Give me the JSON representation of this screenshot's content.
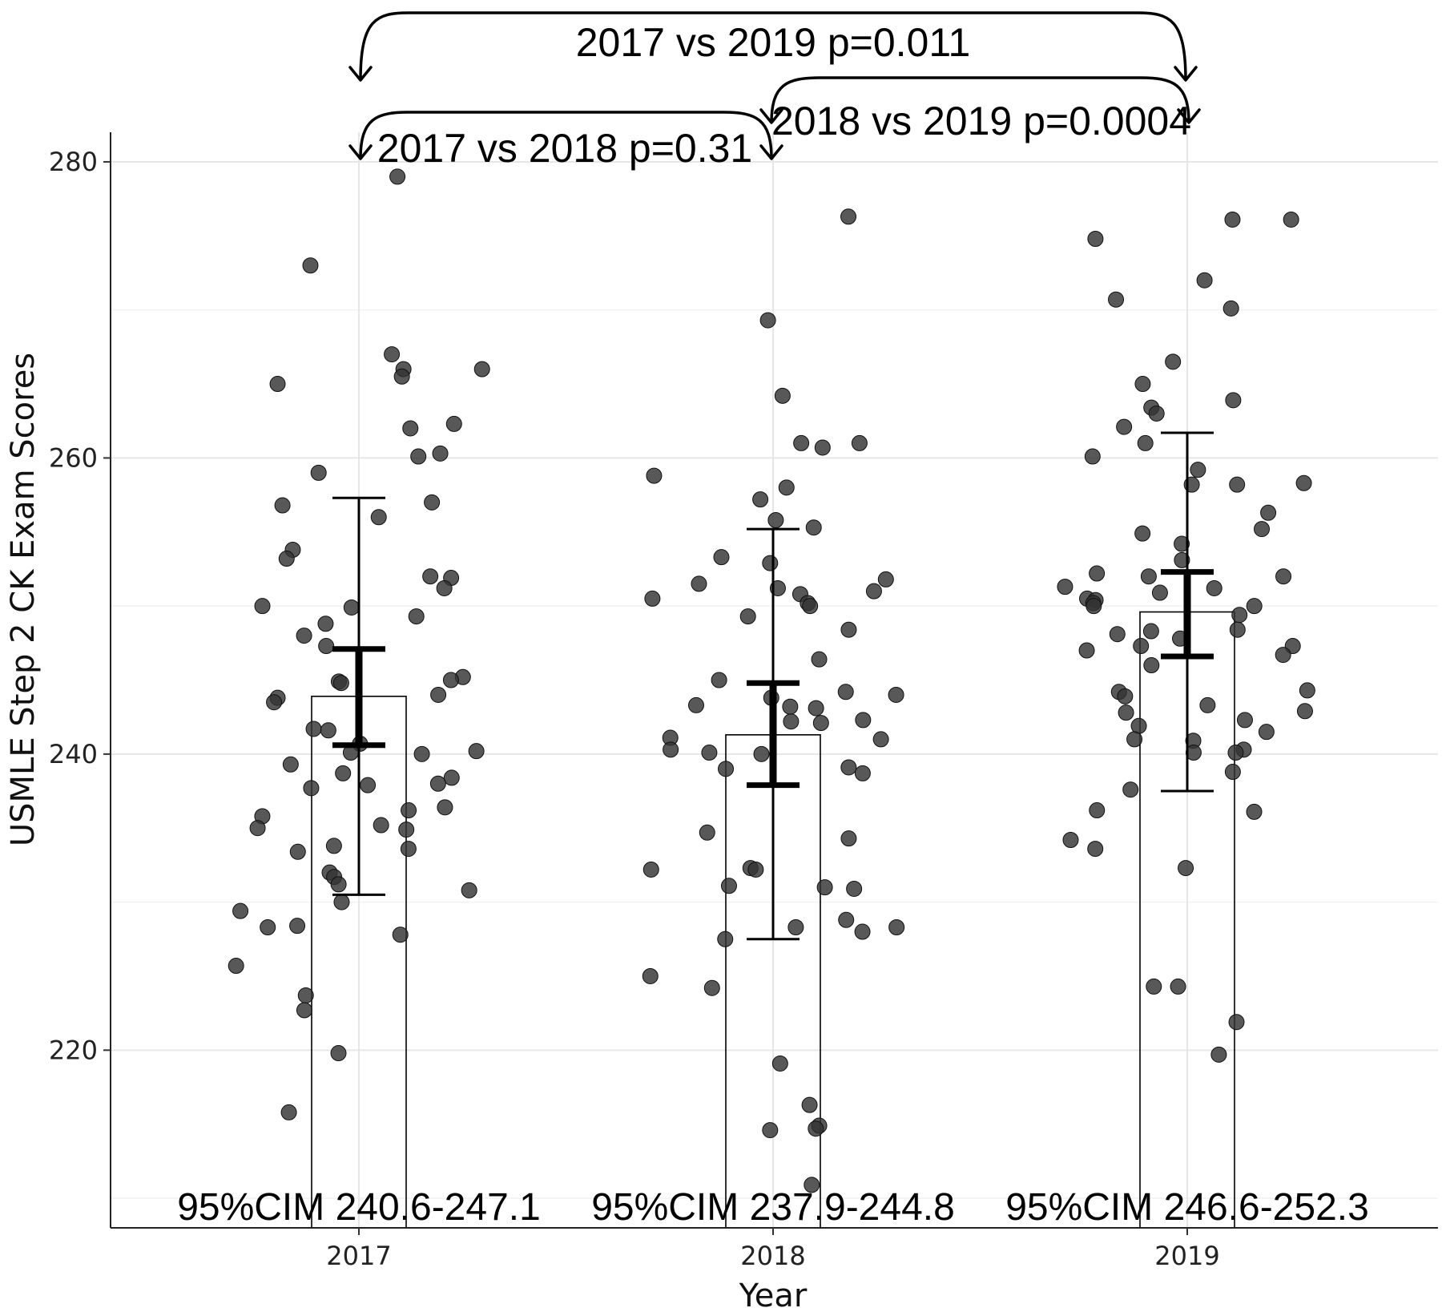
{
  "chart_data": {
    "type": "scatter",
    "title": "",
    "xlabel": "Year",
    "ylabel": "USMLE Step 2 CK Exam Scores",
    "categories": [
      "2017",
      "2018",
      "2019"
    ],
    "ylim": [
      208,
      282
    ],
    "yticks": [
      220,
      240,
      260,
      280
    ],
    "grid": true,
    "bars": [
      {
        "category": "2017",
        "mean": 243.9,
        "ci_low": 240.6,
        "ci_high": 247.1,
        "sd_low": 230.5,
        "sd_high": 257.3,
        "ci_text": "95%CIM 240.6-247.1"
      },
      {
        "category": "2018",
        "mean": 241.3,
        "ci_low": 237.9,
        "ci_high": 244.8,
        "sd_low": 227.5,
        "sd_high": 255.2,
        "ci_text": "95%CIM 237.9-244.8"
      },
      {
        "category": "2019",
        "mean": 249.6,
        "ci_low": 246.6,
        "ci_high": 252.3,
        "sd_low": 237.5,
        "sd_high": 261.7,
        "ci_text": "95%CIM 246.6-252.3"
      }
    ],
    "comparisons": [
      {
        "from": "2017",
        "to": "2019",
        "label": "2017 vs 2019 p=0.011"
      },
      {
        "from": "2018",
        "to": "2019",
        "label": "2018 vs 2019 p=0.0004"
      },
      {
        "from": "2017",
        "to": "2018",
        "label": "2017 vs 2018 p=0.31"
      }
    ],
    "points": [
      {
        "category": "2017",
        "values": [
          279,
          273,
          267,
          266,
          266,
          265.5,
          265,
          262.3,
          262,
          260.3,
          260.1,
          259,
          257,
          256.8,
          256,
          253.8,
          253.2,
          252,
          251.9,
          251.2,
          250,
          249.9,
          249.3,
          248.8,
          248,
          247.3,
          245.2,
          245,
          244.9,
          244.8,
          244,
          243.8,
          243.5,
          241.7,
          241.6,
          240.7,
          240.2,
          240.1,
          240,
          239.3,
          238.7,
          238.4,
          238,
          237.7,
          237.9,
          236.4,
          236.2,
          235.8,
          235.2,
          235,
          234.9,
          233.8,
          233.6,
          233.4,
          232,
          231.7,
          231.2,
          230.8,
          230,
          229.4,
          228.4,
          228.3,
          227.8,
          225.7,
          223.7,
          222.7,
          219.8,
          215.8
        ]
      },
      {
        "category": "2018",
        "values": [
          276.3,
          269.3,
          264.2,
          261,
          261,
          260.7,
          258.8,
          258,
          257.2,
          255.8,
          255.3,
          253.3,
          252.9,
          251.8,
          251.5,
          251.2,
          251,
          250.8,
          250.5,
          250.2,
          250,
          249.3,
          248.4,
          246.4,
          245,
          244.2,
          244,
          243.8,
          243.3,
          243.2,
          243.1,
          242.3,
          242.2,
          242.1,
          241.1,
          241,
          240.3,
          240.1,
          240,
          239.1,
          239,
          238.7,
          234.7,
          234.3,
          232.3,
          232.2,
          232.2,
          231.1,
          231,
          230.9,
          228.8,
          228.3,
          228.3,
          228,
          227.5,
          225,
          224.2,
          219.1,
          216.3,
          214.9,
          214.7,
          214.6,
          210.9
        ]
      },
      {
        "category": "2019",
        "values": [
          276.1,
          276.1,
          274.8,
          272,
          270.7,
          270.1,
          266.5,
          265,
          263.9,
          263.4,
          263,
          262.1,
          261,
          260.1,
          259.2,
          258.3,
          258.2,
          258.2,
          256.3,
          255.2,
          254.9,
          254.2,
          253.1,
          252.2,
          252,
          252,
          251.3,
          251.2,
          250.9,
          250.5,
          250.4,
          250.2,
          250,
          250,
          249.4,
          248.4,
          248.3,
          248.1,
          247.8,
          247.3,
          247.3,
          247,
          246.7,
          246,
          244.3,
          244.2,
          243.9,
          243.3,
          242.9,
          242.8,
          242.3,
          241.9,
          241.5,
          241,
          240.9,
          240.3,
          240.1,
          240.1,
          238.8,
          237.6,
          236.2,
          236.1,
          234.2,
          233.6,
          232.3,
          224.3,
          224.3,
          221.9,
          219.7
        ]
      }
    ]
  }
}
